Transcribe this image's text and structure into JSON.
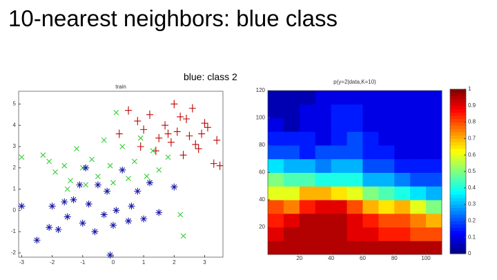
{
  "slide": {
    "title": "10-nearest neighbors: blue class",
    "caption": "blue: class 2"
  },
  "chart_data": [
    {
      "type": "scatter",
      "title": "train",
      "xlim": [
        -3.1,
        3.6
      ],
      "ylim": [
        -2.2,
        5.6
      ],
      "xticks": [
        -3,
        -2,
        -1,
        0,
        1,
        2,
        3
      ],
      "yticks": [
        -2,
        -1,
        0,
        1,
        2,
        3,
        4,
        5
      ],
      "series": [
        {
          "color": "#c00000",
          "marker": "plus",
          "x": [
            0.2,
            0.5,
            0.8,
            1.0,
            1.2,
            1.5,
            1.7,
            1.9,
            2.0,
            2.1,
            2.2,
            2.3,
            2.5,
            2.6,
            2.7,
            2.8,
            3.0,
            3.1,
            3.3,
            3.4,
            1.4,
            1.8,
            2.4,
            0.9,
            2.9,
            3.5
          ],
          "values": [
            3.6,
            4.7,
            4.2,
            3.8,
            4.5,
            3.4,
            4.0,
            3.2,
            5.0,
            3.7,
            4.4,
            2.6,
            3.5,
            4.8,
            3.1,
            2.9,
            4.1,
            3.9,
            2.2,
            3.3,
            2.8,
            3.6,
            4.3,
            3.0,
            3.6,
            2.1
          ]
        },
        {
          "color": "#33cc33",
          "marker": "cross",
          "x": [
            -3,
            -2.3,
            -2.1,
            -1.9,
            -1.6,
            -1.4,
            -1.2,
            -1.0,
            -0.9,
            -0.7,
            -0.5,
            -0.3,
            -0.1,
            0.1,
            0.3,
            0.5,
            0.7,
            0.9,
            1.1,
            1.3,
            1.5,
            1.8,
            2.2,
            -0.2,
            0.0,
            -1.5,
            2.3
          ],
          "values": [
            2.5,
            2.6,
            2.3,
            1.8,
            2.1,
            1.4,
            2.9,
            2.0,
            1.2,
            2.4,
            1.6,
            3.3,
            2.1,
            4.6,
            3.0,
            1.5,
            2.3,
            3.4,
            1.6,
            2.8,
            1.9,
            2.5,
            -0.2,
            0.9,
            1.3,
            1.0,
            -1.2
          ]
        },
        {
          "color": "#1a1aa6",
          "marker": "star",
          "x": [
            -3,
            -2.1,
            -2.0,
            -1.8,
            -1.6,
            -1.5,
            -1.3,
            -1.1,
            -1.0,
            -0.9,
            -0.8,
            -0.6,
            -0.5,
            -0.3,
            -0.2,
            0,
            0.1,
            0.3,
            0.5,
            0.6,
            0.8,
            1.0,
            1.2,
            1.5,
            2.0,
            -2.5,
            -0.1
          ],
          "values": [
            0.2,
            -0.8,
            0.2,
            -0.9,
            0.4,
            -0.3,
            0.5,
            1.2,
            -0.6,
            2.0,
            0.3,
            -1.0,
            1.2,
            -0.2,
            0.9,
            -0.7,
            0,
            1.9,
            -0.5,
            0.2,
            0.9,
            -0.4,
            1.3,
            -0.1,
            1.1,
            -1.4,
            -2.1
          ]
        }
      ]
    },
    {
      "type": "heatmap",
      "title": "p(y=2|data,K=10)",
      "colormap": "jet",
      "xlim": [
        0,
        110
      ],
      "ylim": [
        0,
        120
      ],
      "xticks": [
        20,
        40,
        60,
        80,
        100
      ],
      "yticks": [
        20,
        40,
        60,
        80,
        100,
        120
      ],
      "clim": [
        0,
        1
      ],
      "cticks": [
        0,
        0.1,
        0.2,
        0.3,
        0.4,
        0.5,
        0.6,
        0.7,
        0.8,
        0.9,
        1
      ],
      "z": [
        [
          0.95,
          0.95,
          0.95,
          0.95,
          0.95,
          0.95,
          0.95,
          0.95,
          0.95,
          0.95,
          0.95
        ],
        [
          0.9,
          0.95,
          0.95,
          0.95,
          0.95,
          0.9,
          0.9,
          0.85,
          0.85,
          0.8,
          0.8
        ],
        [
          0.85,
          0.9,
          0.95,
          0.95,
          0.95,
          0.9,
          0.85,
          0.8,
          0.8,
          0.75,
          0.7
        ],
        [
          0.8,
          0.75,
          0.85,
          0.9,
          0.9,
          0.8,
          0.7,
          0.65,
          0.7,
          0.6,
          0.5
        ],
        [
          0.6,
          0.6,
          0.7,
          0.7,
          0.65,
          0.6,
          0.5,
          0.45,
          0.4,
          0.35,
          0.3
        ],
        [
          0.5,
          0.45,
          0.45,
          0.4,
          0.4,
          0.4,
          0.3,
          0.3,
          0.25,
          0.2,
          0.2
        ],
        [
          0.35,
          0.3,
          0.3,
          0.25,
          0.3,
          0.3,
          0.2,
          0.2,
          0.15,
          0.15,
          0.15
        ],
        [
          0.2,
          0.2,
          0.15,
          0.2,
          0.2,
          0.2,
          0.15,
          0.15,
          0.1,
          0.1,
          0.1
        ],
        [
          0.15,
          0.15,
          0.15,
          0.1,
          0.15,
          0.2,
          0.15,
          0.1,
          0.1,
          0.1,
          0.1
        ],
        [
          0.1,
          0.05,
          0.1,
          0.1,
          0.15,
          0.15,
          0.1,
          0.1,
          0.1,
          0.1,
          0.1
        ],
        [
          0.05,
          0.05,
          0.1,
          0.1,
          0.15,
          0.15,
          0.1,
          0.1,
          0.1,
          0.1,
          0.1
        ],
        [
          0.05,
          0.05,
          0.05,
          0.1,
          0.1,
          0.1,
          0.1,
          0.1,
          0.1,
          0.1,
          0.1
        ]
      ]
    }
  ]
}
